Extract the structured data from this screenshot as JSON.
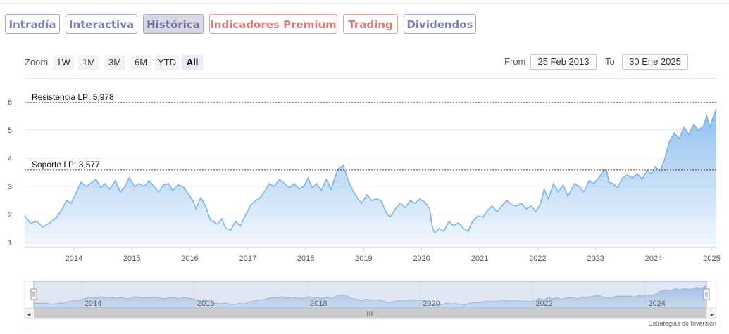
{
  "tabs": [
    {
      "label": "Intradía",
      "style": "purple"
    },
    {
      "label": "Interactiva",
      "style": "purple"
    },
    {
      "label": "Histórica",
      "style": "active"
    },
    {
      "label": "Indicadores Premium",
      "style": "red"
    },
    {
      "label": "Trading",
      "style": "red"
    },
    {
      "label": "Dividendos",
      "style": "purple"
    }
  ],
  "zoom": {
    "label": "Zoom",
    "buttons": [
      "1W",
      "1M",
      "3M",
      "6M",
      "YTD",
      "All"
    ],
    "selected": "All"
  },
  "range": {
    "from_label": "From",
    "from_value": "25 Feb 2013",
    "to_label": "To",
    "to_value": "30 Ene 2025"
  },
  "credit": "Estrategias de Inversión",
  "colors": {
    "line": "#7cb5ec",
    "resistance": "#2e8b2e",
    "support": "#9b1c1c",
    "navigator_mask": "#c7d3ea",
    "purple_tab": "#7b7fb3",
    "red_tab": "#e07a72"
  },
  "chart_data": {
    "type": "area",
    "x_kind": "date",
    "ylim": [
      1,
      6
    ],
    "yticks": [
      1,
      2,
      3,
      4,
      5,
      6
    ],
    "xtick_labels": [
      "2014",
      "2015",
      "2016",
      "2017",
      "2018",
      "2019",
      "2020",
      "2021",
      "2022",
      "2023",
      "2024",
      "2025"
    ],
    "navigator_labels": [
      "2014",
      "2016",
      "2018",
      "2020",
      "2022",
      "2024"
    ],
    "annotations": [
      {
        "label": "Resistencia LP: 5,978",
        "value": 5.978,
        "kind": "resistance"
      },
      {
        "label": "Soporte LP: 3,577",
        "value": 3.577,
        "kind": "support"
      }
    ],
    "points": [
      [
        "2013-02-25",
        1.95
      ],
      [
        "2013-04-01",
        1.7
      ],
      [
        "2013-05-15",
        1.75
      ],
      [
        "2013-06-20",
        1.55
      ],
      [
        "2013-08-01",
        1.7
      ],
      [
        "2013-09-15",
        1.9
      ],
      [
        "2013-10-20",
        2.2
      ],
      [
        "2013-11-15",
        2.5
      ],
      [
        "2013-12-15",
        2.4
      ],
      [
        "2014-01-10",
        2.7
      ],
      [
        "2014-02-15",
        3.15
      ],
      [
        "2014-03-20",
        3.0
      ],
      [
        "2014-04-15",
        3.1
      ],
      [
        "2014-05-20",
        3.25
      ],
      [
        "2014-06-20",
        2.95
      ],
      [
        "2014-07-15",
        3.1
      ],
      [
        "2014-08-15",
        2.9
      ],
      [
        "2014-09-20",
        3.2
      ],
      [
        "2014-10-20",
        2.8
      ],
      [
        "2014-11-20",
        3.0
      ],
      [
        "2014-12-15",
        3.3
      ],
      [
        "2015-01-20",
        3.0
      ],
      [
        "2015-02-15",
        3.1
      ],
      [
        "2015-03-20",
        3.0
      ],
      [
        "2015-04-20",
        3.2
      ],
      [
        "2015-05-20",
        3.0
      ],
      [
        "2015-06-20",
        2.8
      ],
      [
        "2015-07-20",
        3.05
      ],
      [
        "2015-08-20",
        3.1
      ],
      [
        "2015-09-15",
        2.85
      ],
      [
        "2015-10-20",
        3.05
      ],
      [
        "2015-11-20",
        3.0
      ],
      [
        "2015-12-20",
        2.75
      ],
      [
        "2016-01-20",
        2.5
      ],
      [
        "2016-02-10",
        2.2
      ],
      [
        "2016-03-10",
        2.6
      ],
      [
        "2016-04-10",
        2.3
      ],
      [
        "2016-05-10",
        1.8
      ],
      [
        "2016-06-24",
        1.65
      ],
      [
        "2016-07-20",
        1.85
      ],
      [
        "2016-08-15",
        1.5
      ],
      [
        "2016-09-15",
        1.45
      ],
      [
        "2016-10-15",
        1.75
      ],
      [
        "2016-11-15",
        1.6
      ],
      [
        "2016-12-15",
        1.95
      ],
      [
        "2017-01-20",
        2.35
      ],
      [
        "2017-02-20",
        2.5
      ],
      [
        "2017-03-20",
        2.6
      ],
      [
        "2017-04-20",
        2.85
      ],
      [
        "2017-05-15",
        3.1
      ],
      [
        "2017-06-15",
        3.0
      ],
      [
        "2017-07-20",
        3.25
      ],
      [
        "2017-08-20",
        3.1
      ],
      [
        "2017-09-20",
        2.95
      ],
      [
        "2017-10-20",
        3.1
      ],
      [
        "2017-11-20",
        2.9
      ],
      [
        "2017-12-20",
        3.0
      ],
      [
        "2018-01-15",
        3.3
      ],
      [
        "2018-02-10",
        2.95
      ],
      [
        "2018-03-10",
        3.1
      ],
      [
        "2018-04-10",
        2.85
      ],
      [
        "2018-05-10",
        3.25
      ],
      [
        "2018-06-10",
        2.9
      ],
      [
        "2018-07-20",
        3.6
      ],
      [
        "2018-08-25",
        3.75
      ],
      [
        "2018-09-20",
        3.3
      ],
      [
        "2018-10-20",
        2.9
      ],
      [
        "2018-11-20",
        2.6
      ],
      [
        "2018-12-20",
        2.4
      ],
      [
        "2019-01-20",
        2.7
      ],
      [
        "2019-02-20",
        2.5
      ],
      [
        "2019-03-20",
        2.55
      ],
      [
        "2019-04-20",
        2.5
      ],
      [
        "2019-05-20",
        2.1
      ],
      [
        "2019-06-15",
        1.9
      ],
      [
        "2019-07-20",
        2.2
      ],
      [
        "2019-08-20",
        2.4
      ],
      [
        "2019-09-20",
        2.25
      ],
      [
        "2019-10-20",
        2.5
      ],
      [
        "2019-11-20",
        2.4
      ],
      [
        "2019-12-20",
        2.55
      ],
      [
        "2020-01-20",
        2.45
      ],
      [
        "2020-02-20",
        2.2
      ],
      [
        "2020-03-10",
        1.5
      ],
      [
        "2020-03-25",
        1.35
      ],
      [
        "2020-04-20",
        1.5
      ],
      [
        "2020-05-20",
        1.4
      ],
      [
        "2020-06-20",
        1.75
      ],
      [
        "2020-07-20",
        1.6
      ],
      [
        "2020-08-20",
        1.7
      ],
      [
        "2020-09-20",
        1.5
      ],
      [
        "2020-10-20",
        1.4
      ],
      [
        "2020-11-15",
        1.75
      ],
      [
        "2020-12-20",
        1.95
      ],
      [
        "2021-01-20",
        1.9
      ],
      [
        "2021-02-20",
        2.15
      ],
      [
        "2021-03-20",
        2.3
      ],
      [
        "2021-04-20",
        2.1
      ],
      [
        "2021-05-20",
        2.3
      ],
      [
        "2021-06-20",
        2.5
      ],
      [
        "2021-07-20",
        2.35
      ],
      [
        "2021-08-20",
        2.3
      ],
      [
        "2021-09-20",
        2.4
      ],
      [
        "2021-10-20",
        2.2
      ],
      [
        "2021-11-20",
        2.3
      ],
      [
        "2021-12-20",
        2.1
      ],
      [
        "2022-01-20",
        2.4
      ],
      [
        "2022-02-10",
        2.9
      ],
      [
        "2022-03-10",
        2.55
      ],
      [
        "2022-04-10",
        3.1
      ],
      [
        "2022-05-10",
        2.8
      ],
      [
        "2022-06-10",
        3.05
      ],
      [
        "2022-07-10",
        2.65
      ],
      [
        "2022-08-20",
        3.1
      ],
      [
        "2022-09-20",
        3.0
      ],
      [
        "2022-10-20",
        2.8
      ],
      [
        "2022-11-20",
        3.2
      ],
      [
        "2022-12-20",
        3.1
      ],
      [
        "2023-01-20",
        3.3
      ],
      [
        "2023-02-20",
        3.55
      ],
      [
        "2023-03-10",
        3.6
      ],
      [
        "2023-03-25",
        3.15
      ],
      [
        "2023-04-20",
        3.1
      ],
      [
        "2023-05-20",
        2.95
      ],
      [
        "2023-06-20",
        3.3
      ],
      [
        "2023-07-20",
        3.4
      ],
      [
        "2023-08-20",
        3.3
      ],
      [
        "2023-09-20",
        3.45
      ],
      [
        "2023-10-20",
        3.25
      ],
      [
        "2023-11-20",
        3.55
      ],
      [
        "2023-12-20",
        3.45
      ],
      [
        "2024-01-10",
        3.7
      ],
      [
        "2024-02-10",
        3.55
      ],
      [
        "2024-03-10",
        3.95
      ],
      [
        "2024-04-10",
        4.6
      ],
      [
        "2024-05-10",
        4.9
      ],
      [
        "2024-06-10",
        4.7
      ],
      [
        "2024-07-10",
        5.1
      ],
      [
        "2024-08-10",
        4.85
      ],
      [
        "2024-09-10",
        5.2
      ],
      [
        "2024-10-10",
        5.0
      ],
      [
        "2024-11-10",
        5.15
      ],
      [
        "2024-12-01",
        5.5
      ],
      [
        "2024-12-20",
        5.1
      ],
      [
        "2025-01-15",
        5.55
      ],
      [
        "2025-01-30",
        5.75
      ]
    ]
  }
}
